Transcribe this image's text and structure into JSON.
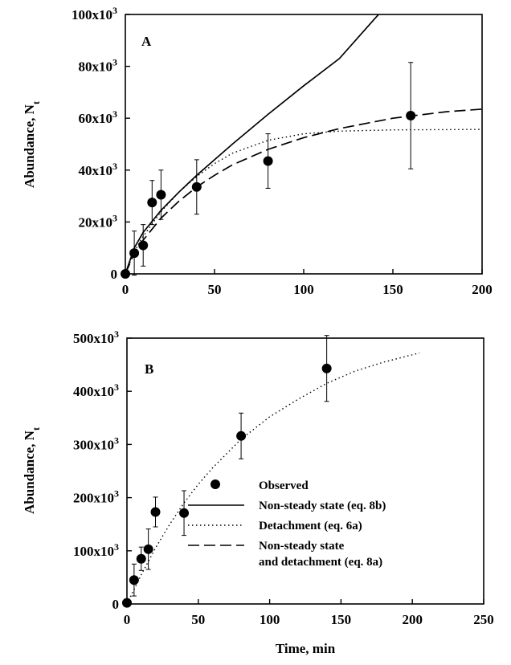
{
  "chart_data": [
    {
      "panel_label": "A",
      "type": "scatter",
      "xlabel": "",
      "ylabel": "Abundance, N",
      "ylabel_sub": "t",
      "xlim": [
        0,
        200
      ],
      "ylim": [
        0,
        100000
      ],
      "xticks": [
        {
          "value": 0,
          "label": "0"
        },
        {
          "value": 50,
          "label": "50"
        },
        {
          "value": 100,
          "label": "100"
        },
        {
          "value": 150,
          "label": "150"
        },
        {
          "value": 200,
          "label": "200"
        }
      ],
      "yticks": [
        {
          "value": 0,
          "base": "0",
          "exp": ""
        },
        {
          "value": 20000,
          "base": "20x10",
          "exp": "3"
        },
        {
          "value": 40000,
          "base": "40x10",
          "exp": "3"
        },
        {
          "value": 60000,
          "base": "60x10",
          "exp": "3"
        },
        {
          "value": 80000,
          "base": "80x10",
          "exp": "3"
        },
        {
          "value": 100000,
          "base": "100x10",
          "exp": "3"
        }
      ],
      "grid": false,
      "series": [
        {
          "name": "Observed",
          "kind": "points",
          "x": [
            0,
            5,
            10,
            15,
            20,
            40,
            80,
            160
          ],
          "y": [
            0,
            8000,
            11000,
            27500,
            30500,
            33500,
            43500,
            61000
          ],
          "y_err": [
            0,
            8500,
            8000,
            8500,
            9500,
            10500,
            10500,
            20500
          ]
        },
        {
          "name": "Non-steady state (eq. 8b)",
          "kind": "line",
          "style": "solid",
          "x": [
            0,
            5,
            10,
            20,
            30,
            40,
            50,
            60,
            80,
            100,
            120,
            140,
            142
          ],
          "y": [
            0,
            10000,
            16000,
            24500,
            31500,
            38000,
            44000,
            50000,
            61500,
            72500,
            83000,
            98500,
            100000
          ]
        },
        {
          "name": "Detachment (eq. 6a)",
          "kind": "line",
          "style": "dotted",
          "x": [
            0,
            5,
            10,
            20,
            30,
            40,
            50,
            60,
            80,
            100,
            120,
            150,
            180,
            200
          ],
          "y": [
            0,
            8500,
            14500,
            24000,
            31500,
            37500,
            42500,
            46500,
            51500,
            54000,
            55000,
            55500,
            55600,
            55700
          ]
        },
        {
          "name": "Non-steady state and detachment (eq. 8a)",
          "kind": "line",
          "style": "dashed",
          "x": [
            0,
            5,
            10,
            20,
            30,
            40,
            50,
            60,
            80,
            100,
            120,
            150,
            180,
            200
          ],
          "y": [
            0,
            8000,
            13000,
            21500,
            28000,
            33500,
            38000,
            42000,
            48000,
            52500,
            56000,
            60000,
            62500,
            63500
          ]
        }
      ]
    },
    {
      "panel_label": "B",
      "type": "scatter",
      "xlabel": "Time, min",
      "ylabel": "Abundance, N",
      "ylabel_sub": "t",
      "xlim": [
        0,
        250
      ],
      "ylim": [
        0,
        500000
      ],
      "xticks": [
        {
          "value": 0,
          "label": "0"
        },
        {
          "value": 50,
          "label": "50"
        },
        {
          "value": 100,
          "label": "100"
        },
        {
          "value": 150,
          "label": "150"
        },
        {
          "value": 200,
          "label": "200"
        },
        {
          "value": 250,
          "label": "250"
        }
      ],
      "yticks": [
        {
          "value": 0,
          "base": "0",
          "exp": ""
        },
        {
          "value": 100000,
          "base": "100x10",
          "exp": "3"
        },
        {
          "value": 200000,
          "base": "200x10",
          "exp": "3"
        },
        {
          "value": 300000,
          "base": "300x10",
          "exp": "3"
        },
        {
          "value": 400000,
          "base": "400x10",
          "exp": "3"
        },
        {
          "value": 500000,
          "base": "500x10",
          "exp": "3"
        }
      ],
      "grid": false,
      "legend": {
        "placement": "center-right",
        "entries": [
          {
            "style": "marker",
            "lines": [
              "Observed"
            ]
          },
          {
            "style": "solid",
            "lines": [
              "Non-steady state (eq. 8b)"
            ]
          },
          {
            "style": "dotted",
            "lines": [
              "Detachment (eq. 6a)"
            ]
          },
          {
            "style": "dashed",
            "lines": [
              "Non-steady state",
              "and detachment (eq. 8a)"
            ]
          }
        ]
      },
      "series": [
        {
          "name": "Observed",
          "kind": "points",
          "x": [
            0,
            5,
            10,
            15,
            20,
            40,
            80,
            140
          ],
          "y": [
            2000,
            45000,
            85000,
            103000,
            173000,
            171000,
            316000,
            443000
          ],
          "y_err": [
            0,
            30000,
            22000,
            38000,
            28000,
            42000,
            43000,
            62000
          ]
        },
        {
          "name": "Detachment (eq. 6a)",
          "kind": "line",
          "style": "dotted",
          "x": [
            0,
            10,
            20,
            30,
            40,
            50,
            60,
            80,
            100,
            120,
            140,
            160,
            180,
            205
          ],
          "y": [
            0,
            55000,
            105000,
            150000,
            190000,
            225000,
            256000,
            310000,
            352000,
            385000,
            415000,
            438000,
            455000,
            472000
          ]
        }
      ]
    }
  ]
}
